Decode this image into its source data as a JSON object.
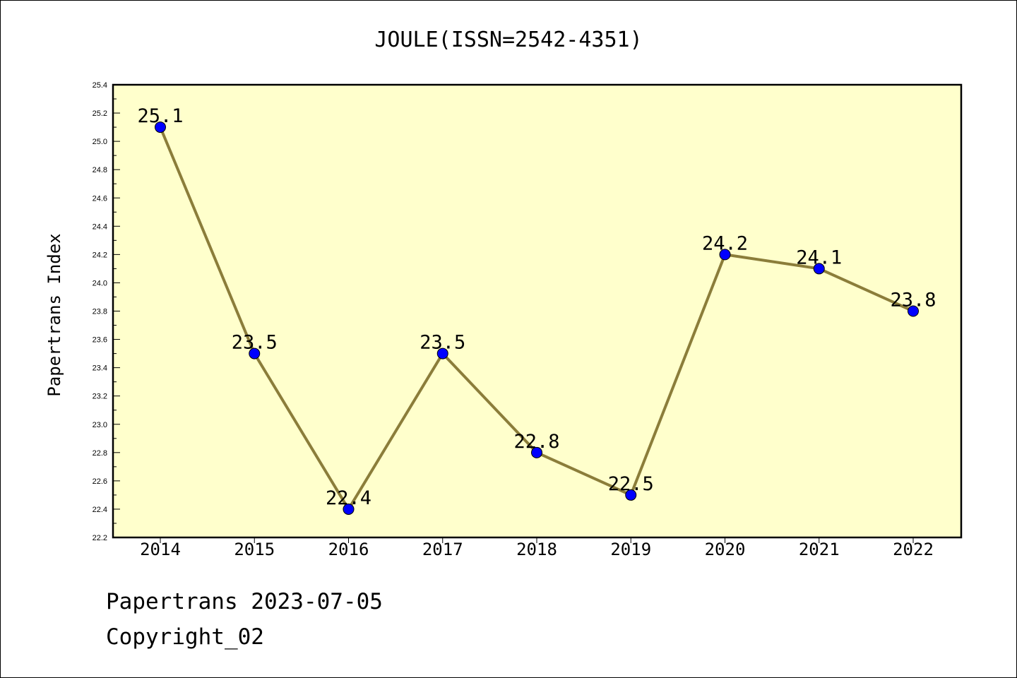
{
  "chart_data": {
    "type": "line",
    "title": "JOULE(ISSN=2542-4351)",
    "xlabel": "",
    "ylabel": "Papertrans Index",
    "categories": [
      "2014",
      "2015",
      "2016",
      "2017",
      "2018",
      "2019",
      "2020",
      "2021",
      "2022"
    ],
    "values": [
      25.1,
      23.5,
      22.4,
      23.5,
      22.8,
      22.5,
      24.2,
      24.1,
      23.8
    ],
    "data_labels": [
      "25.1",
      "23.5",
      "22.4",
      "23.5",
      "22.8",
      "22.5",
      "24.2",
      "24.1",
      "23.8"
    ],
    "ylim": [
      22.2,
      25.4
    ],
    "yticks": [
      "22.2",
      "22.4",
      "22.6",
      "22.8",
      "23.0",
      "23.2",
      "23.4",
      "23.6",
      "23.8",
      "24.0",
      "24.2",
      "24.4",
      "24.6",
      "24.8",
      "25.0",
      "25.2",
      "25.4"
    ],
    "grid": false,
    "colors": {
      "plot_background": "#ffffcc",
      "line": "#8b7d3a",
      "marker": "#0000ff"
    }
  },
  "footer": {
    "line1": "Papertrans 2023-07-05",
    "line2": "Copyright_02"
  }
}
